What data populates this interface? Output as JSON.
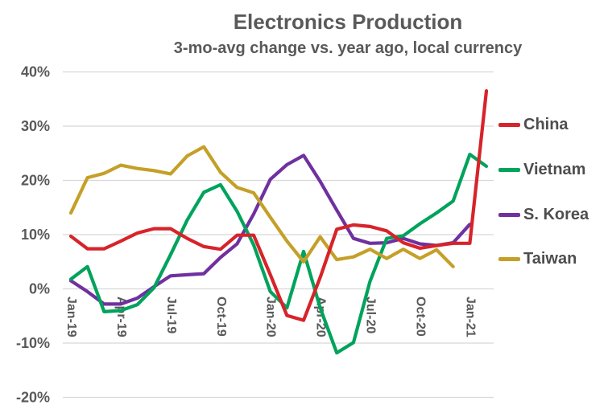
{
  "chart_data": {
    "type": "line",
    "title": "Electronics Production",
    "subtitle": "3-mo-avg change vs. year ago, local currency",
    "unit": "percent",
    "grid": true,
    "legend_position": "right",
    "ylim": [
      -20,
      40
    ],
    "y_ticks": [
      {
        "label": "40%",
        "value": 40
      },
      {
        "label": "30%",
        "value": 30
      },
      {
        "label": "20%",
        "value": 20
      },
      {
        "label": "10%",
        "value": 10
      },
      {
        "label": "0%",
        "value": 0
      },
      {
        "label": "-10%",
        "value": -10
      },
      {
        "label": "-20%",
        "value": -20
      }
    ],
    "x": [
      "Jan-19",
      "Feb-19",
      "Mar-19",
      "Apr-19",
      "May-19",
      "Jun-19",
      "Jul-19",
      "Aug-19",
      "Sep-19",
      "Oct-19",
      "Nov-19",
      "Dec-19",
      "Jan-20",
      "Feb-20",
      "Mar-20",
      "Apr-20",
      "May-20",
      "Jun-20",
      "Jul-20",
      "Aug-20",
      "Sep-20",
      "Oct-20",
      "Nov-20",
      "Dec-20",
      "Jan-21",
      "Feb-21"
    ],
    "x_ticks": [
      {
        "index": 0,
        "label": "Jan-19"
      },
      {
        "index": 3,
        "label": "Apr-19"
      },
      {
        "index": 6,
        "label": "Jul-19"
      },
      {
        "index": 9,
        "label": "Oct-19"
      },
      {
        "index": 12,
        "label": "Jan-20"
      },
      {
        "index": 15,
        "label": "Apr-20"
      },
      {
        "index": 18,
        "label": "Jul-20"
      },
      {
        "index": 21,
        "label": "Oct-20"
      },
      {
        "index": 24,
        "label": "Jan-21"
      }
    ],
    "series": [
      {
        "name": "China",
        "color": "#D7232A",
        "values": [
          9.7,
          7.4,
          7.4,
          8.8,
          10.3,
          11.1,
          11.1,
          9.3,
          7.8,
          7.3,
          9.9,
          9.9,
          2.6,
          -4.9,
          -5.8,
          2.1,
          11.0,
          11.8,
          11.5,
          10.7,
          8.5,
          7.5,
          8.0,
          8.4,
          8.4,
          36.5
        ]
      },
      {
        "name": "Vietnam",
        "color": "#00A35C",
        "values": [
          1.8,
          4.1,
          -4.2,
          -4.0,
          -2.9,
          0.2,
          6.3,
          12.7,
          17.8,
          19.2,
          14.3,
          8.1,
          -0.5,
          -3.5,
          6.9,
          -3.5,
          -11.8,
          -9.9,
          1.4,
          9.3,
          9.8,
          12.0,
          14.0,
          16.2,
          24.8,
          22.6
        ]
      },
      {
        "name": "S. Korea",
        "color": "#7030A0",
        "values": [
          1.5,
          -0.5,
          -2.8,
          -2.8,
          -1.7,
          0.4,
          2.4,
          2.6,
          2.8,
          5.8,
          8.3,
          13.8,
          20.2,
          22.9,
          24.6,
          19.8,
          14.5,
          9.3,
          8.4,
          8.5,
          9.3,
          8.3,
          8.0,
          8.5,
          11.9,
          null
        ]
      },
      {
        "name": "Taiwan",
        "color": "#C5A028",
        "values": [
          14.0,
          20.5,
          21.3,
          22.8,
          22.2,
          21.8,
          21.2,
          24.5,
          26.2,
          21.5,
          18.7,
          17.7,
          13.2,
          8.8,
          5.0,
          9.6,
          5.4,
          5.9,
          7.3,
          5.6,
          7.3,
          5.6,
          7.2,
          4.1,
          null,
          null
        ]
      }
    ],
    "colors": {
      "grid": "#D8D8D8",
      "axis_text": "#595959",
      "title_text": "#595959",
      "legend_text": "#4d4d4d",
      "background": "#FFFFFF"
    }
  }
}
